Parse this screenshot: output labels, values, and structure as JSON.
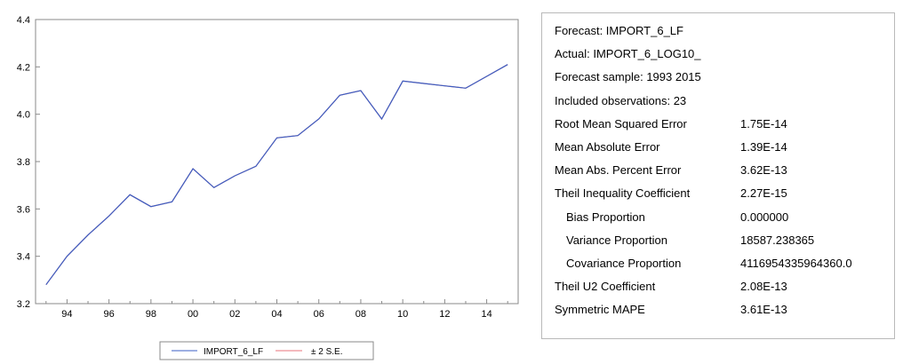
{
  "chart_data": {
    "type": "line",
    "x": [
      1993,
      1994,
      1995,
      1996,
      1997,
      1998,
      1999,
      2000,
      2001,
      2002,
      2003,
      2004,
      2005,
      2006,
      2007,
      2008,
      2009,
      2010,
      2011,
      2012,
      2013,
      2014,
      2015
    ],
    "series": [
      {
        "name": "IMPORT_6_LF",
        "color": "#3b5fc4",
        "values": [
          3.28,
          3.4,
          3.49,
          3.57,
          3.66,
          3.61,
          3.63,
          3.77,
          3.69,
          3.74,
          3.78,
          3.9,
          3.91,
          3.98,
          4.08,
          4.1,
          3.98,
          4.14,
          4.13,
          4.12,
          4.11,
          4.16,
          4.21
        ]
      },
      {
        "name": "± 2 S.E.",
        "color": "#e8737b",
        "values": [
          3.28,
          3.4,
          3.49,
          3.57,
          3.66,
          3.61,
          3.63,
          3.77,
          3.69,
          3.74,
          3.78,
          3.9,
          3.91,
          3.98,
          4.08,
          4.1,
          3.98,
          4.14,
          4.13,
          4.12,
          4.11,
          4.16,
          4.21
        ]
      }
    ],
    "xlim": [
      1992.5,
      2015.5
    ],
    "ylim": [
      3.2,
      4.4
    ],
    "yticks": [
      3.2,
      3.4,
      3.6,
      3.8,
      4.0,
      4.2,
      4.4
    ],
    "ytick_labels": [
      "3.2",
      "3.4",
      "3.6",
      "3.8",
      "4.0",
      "4.2",
      "4.4"
    ],
    "xticks": [
      1994,
      1996,
      1998,
      2000,
      2002,
      2004,
      2006,
      2008,
      2010,
      2012,
      2014
    ],
    "xtick_labels": [
      "94",
      "96",
      "98",
      "00",
      "02",
      "04",
      "06",
      "08",
      "10",
      "12",
      "14"
    ],
    "title": "",
    "xlabel": "",
    "ylabel": "",
    "grid": false,
    "legend_position": "bottom-center"
  },
  "stats": {
    "rows": [
      {
        "label": "Forecast: IMPORT_6_LF",
        "value": ""
      },
      {
        "label": "Actual: IMPORT_6_LOG10_",
        "value": ""
      },
      {
        "label": "Forecast sample: 1993 2015",
        "value": ""
      },
      {
        "label": "Included observations: 23",
        "value": ""
      },
      {
        "label": "Root Mean Squared Error",
        "value": "1.75E-14"
      },
      {
        "label": "Mean Absolute Error",
        "value": "1.39E-14"
      },
      {
        "label": "Mean Abs. Percent Error",
        "value": "3.62E-13"
      },
      {
        "label": "Theil Inequality Coefficient",
        "value": "2.27E-15"
      },
      {
        "label": "Bias Proportion",
        "value": "0.000000",
        "indent": true
      },
      {
        "label": "Variance Proportion",
        "value": "18587.238365",
        "indent": true
      },
      {
        "label": "Covariance Proportion",
        "value": "4116954335964360.0",
        "indent": true
      },
      {
        "label": "Theil U2 Coefficient",
        "value": "2.08E-13"
      },
      {
        "label": "Symmetric MAPE",
        "value": "3.61E-13"
      }
    ]
  }
}
